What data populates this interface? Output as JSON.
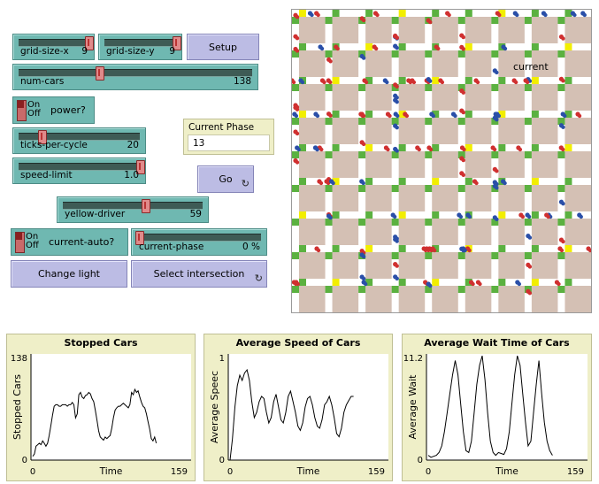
{
  "controls": {
    "grid_size_x": {
      "label": "grid-size-x",
      "value": "9",
      "fraction": 1.0
    },
    "grid_size_y": {
      "label": "grid-size-y",
      "value": "9",
      "fraction": 1.0
    },
    "setup_label": "Setup",
    "num_cars": {
      "label": "num-cars",
      "value": "138",
      "fraction": 0.32
    },
    "power": {
      "label": "power?",
      "on": "On",
      "off": "Off"
    },
    "current_phase_monitor": {
      "label": "Current Phase",
      "value": "13"
    },
    "ticks_per_cycle": {
      "label": "ticks-per-cycle",
      "value": "20",
      "fraction": 0.2
    },
    "speed_limit": {
      "label": "speed-limit",
      "value": "1.0",
      "fraction": 1.0
    },
    "go_label": "Go",
    "forever_icon": "↻",
    "yellow_driver": {
      "label": "yellow-driver",
      "value": "59",
      "fraction": 0.59
    },
    "current_auto": {
      "label": "current-auto?",
      "on": "On",
      "off": "Off"
    },
    "current_phase_slider": {
      "label": "current-phase",
      "value": "0 %",
      "fraction": 0.0
    },
    "change_light_label": "Change light",
    "select_intersection_label": "Select intersection"
  },
  "world": {
    "current_label": "current",
    "grid": 9,
    "road_color": "#ffffff",
    "block_color": "#d4c0b4",
    "green_light": "#5bb140",
    "red_car": "#d03030",
    "blue_car": "#2a4fa8",
    "yellow_light": "#f2ee00"
  },
  "chart_data": [
    {
      "type": "line",
      "title": "Stopped Cars",
      "ylabel": "Stopped Cars",
      "xlabel": "Time",
      "xlim": [
        0,
        159
      ],
      "ylim": [
        0,
        138
      ],
      "x_ticks": [
        "0",
        "159"
      ],
      "y_ticks": [
        "0",
        "138"
      ],
      "values": [
        5,
        8,
        18,
        20,
        22,
        20,
        25,
        22,
        18,
        22,
        32,
        45,
        58,
        70,
        72,
        72,
        70,
        70,
        72,
        72,
        72,
        70,
        72,
        72,
        75,
        72,
        55,
        60,
        85,
        88,
        82,
        80,
        84,
        85,
        88,
        86,
        80,
        76,
        65,
        52,
        38,
        30,
        28,
        26,
        30,
        28,
        30,
        32,
        42,
        55,
        65,
        68,
        70,
        70,
        72,
        74,
        72,
        70,
        68,
        72,
        88,
        85,
        92,
        88,
        90,
        82,
        75,
        70,
        68,
        60,
        50,
        40,
        28,
        25,
        30,
        22
      ]
    },
    {
      "type": "line",
      "title": "Average Speed of Cars",
      "ylabel": "Average Speec",
      "xlabel": "Time",
      "xlim": [
        0,
        159
      ],
      "ylim": [
        0,
        1
      ],
      "x_ticks": [
        "0",
        "159"
      ],
      "y_ticks": [
        "0",
        "1"
      ],
      "values": [
        0.0,
        0.2,
        0.5,
        0.7,
        0.8,
        0.75,
        0.82,
        0.85,
        0.75,
        0.55,
        0.4,
        0.45,
        0.55,
        0.6,
        0.58,
        0.45,
        0.35,
        0.4,
        0.55,
        0.62,
        0.5,
        0.38,
        0.35,
        0.45,
        0.6,
        0.65,
        0.55,
        0.45,
        0.32,
        0.28,
        0.35,
        0.5,
        0.58,
        0.6,
        0.52,
        0.4,
        0.32,
        0.3,
        0.38,
        0.52,
        0.55,
        0.6,
        0.52,
        0.4,
        0.25,
        0.22,
        0.3,
        0.45,
        0.52,
        0.56,
        0.6,
        0.6
      ]
    },
    {
      "type": "line",
      "title": "Average Wait Time of Cars",
      "ylabel": "Average Wait",
      "xlabel": "Time",
      "xlim": [
        0,
        159
      ],
      "ylim": [
        0,
        11.2
      ],
      "x_ticks": [
        "0",
        "159"
      ],
      "y_ticks": [
        "0",
        "11.2"
      ],
      "values": [
        0.5,
        0.3,
        0.4,
        0.5,
        0.8,
        1.5,
        3,
        5,
        7,
        9,
        10.5,
        9,
        6,
        3,
        1,
        0.8,
        2,
        5,
        8,
        10,
        11,
        8.5,
        5,
        2,
        0.8,
        0.5,
        0.8,
        0.7,
        0.6,
        1.2,
        3,
        6,
        9,
        11,
        10,
        7,
        4,
        1.5,
        2,
        5,
        8,
        10.5,
        7,
        4,
        2,
        1,
        0.5
      ]
    }
  ]
}
